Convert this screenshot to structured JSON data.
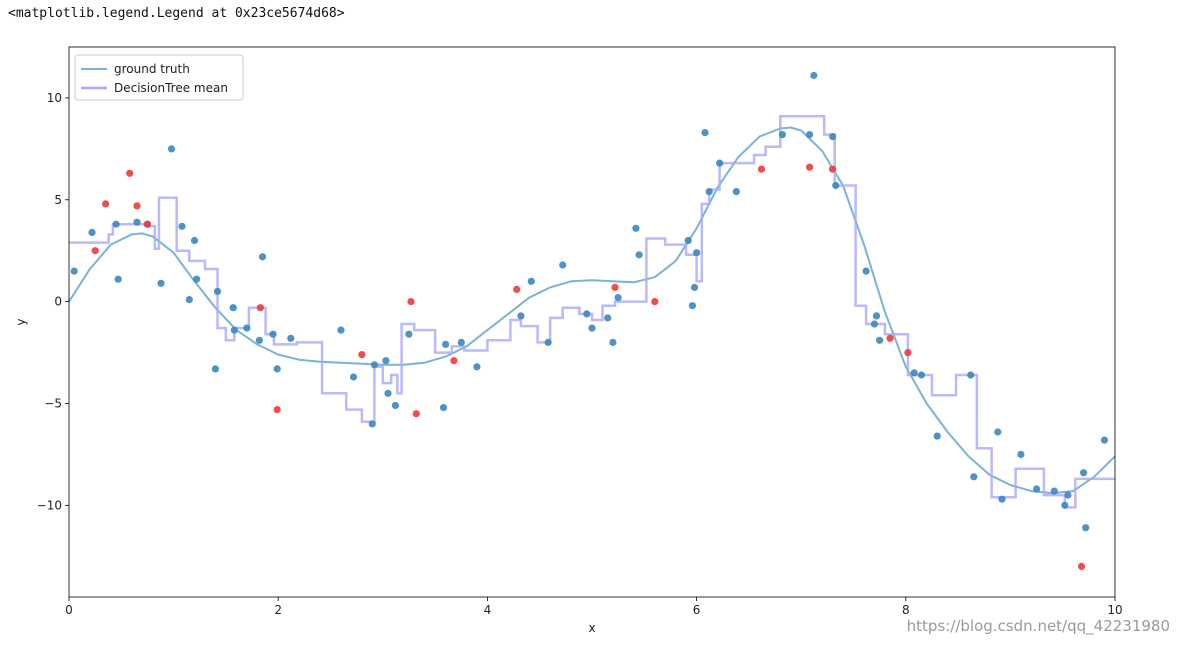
{
  "notebook": {
    "output_repr": "<matplotlib.legend.Legend at 0x23ce5674d68>",
    "watermark": "https://blog.csdn.net/qq_42231980"
  },
  "chart_data": {
    "type": "scatter",
    "title": "",
    "xlabel": "x",
    "ylabel": "y",
    "xlim": [
      0,
      10
    ],
    "ylim": [
      -14.5,
      12.5
    ],
    "xticks": [
      0,
      2,
      4,
      6,
      8,
      10
    ],
    "xtick_labels": [
      "0",
      "2",
      "4",
      "6",
      "8",
      "10"
    ],
    "yticks": [
      10,
      5,
      0,
      -5,
      -10
    ],
    "ytick_labels": [
      "10",
      "5",
      "0",
      "−5",
      "−10"
    ],
    "grid": false,
    "legend_position": "top-left",
    "colors": {
      "ground_truth": "#7bb3d4",
      "tree_mean": "#a8a8ff",
      "train_points": "#3c87bf",
      "outlier_points": "#f03a3a"
    },
    "series": [
      {
        "name": "ground truth",
        "kind": "line",
        "x": [
          0,
          0.2,
          0.4,
          0.6,
          0.7,
          0.8,
          1.0,
          1.2,
          1.4,
          1.6,
          1.8,
          2.0,
          2.2,
          2.4,
          2.6,
          2.8,
          3.0,
          3.2,
          3.4,
          3.6,
          3.8,
          4.0,
          4.2,
          4.4,
          4.6,
          4.8,
          5.0,
          5.2,
          5.4,
          5.6,
          5.8,
          6.0,
          6.2,
          6.4,
          6.6,
          6.8,
          6.9,
          7.0,
          7.2,
          7.4,
          7.6,
          7.8,
          8.0,
          8.2,
          8.4,
          8.6,
          8.8,
          9.0,
          9.2,
          9.4,
          9.6,
          9.8,
          10.0
        ],
        "y": [
          0,
          1.6,
          2.8,
          3.3,
          3.35,
          3.2,
          2.4,
          1.0,
          -0.3,
          -1.4,
          -2.1,
          -2.6,
          -2.85,
          -2.95,
          -3.0,
          -3.05,
          -3.1,
          -3.1,
          -3.0,
          -2.7,
          -2.2,
          -1.4,
          -0.6,
          0.2,
          0.7,
          1.0,
          1.05,
          1.0,
          0.95,
          1.2,
          2.0,
          3.6,
          5.6,
          7.1,
          8.1,
          8.5,
          8.55,
          8.4,
          7.4,
          5.7,
          2.8,
          -0.5,
          -3.2,
          -5.0,
          -6.4,
          -7.6,
          -8.5,
          -9.0,
          -9.3,
          -9.4,
          -9.3,
          -8.6,
          -7.6
        ]
      },
      {
        "name": "DecisionTree mean",
        "kind": "step",
        "x": [
          0,
          0.38,
          0.42,
          0.75,
          0.82,
          0.86,
          1.03,
          1.15,
          1.3,
          1.42,
          1.5,
          1.58,
          1.72,
          1.88,
          1.96,
          2.18,
          2.42,
          2.65,
          2.8,
          2.92,
          3.0,
          3.08,
          3.14,
          3.18,
          3.3,
          3.5,
          3.66,
          3.78,
          4.0,
          4.22,
          4.32,
          4.48,
          4.6,
          4.72,
          4.88,
          5.0,
          5.1,
          5.22,
          5.52,
          5.7,
          5.9,
          6.0,
          6.05,
          6.12,
          6.22,
          6.55,
          6.66,
          6.8,
          7.22,
          7.32,
          7.52,
          7.62,
          7.8,
          8.02,
          8.25,
          8.48,
          8.68,
          8.82,
          9.05,
          9.32,
          9.52,
          9.62,
          9.82,
          10.0
        ],
        "y": [
          2.9,
          3.3,
          3.8,
          3.7,
          2.6,
          5.1,
          2.5,
          2.0,
          1.6,
          -1.3,
          -1.9,
          -1.3,
          -0.3,
          -1.6,
          -2.1,
          -2.0,
          -4.5,
          -5.3,
          -5.9,
          -3.2,
          -4.0,
          -3.6,
          -4.5,
          -1.1,
          -1.4,
          -2.5,
          -2.2,
          -2.4,
          -1.9,
          -0.9,
          -1.2,
          -2.0,
          -0.8,
          -0.3,
          -0.6,
          -0.9,
          -0.2,
          0.0,
          3.1,
          2.8,
          2.3,
          1.0,
          4.8,
          5.5,
          6.8,
          7.2,
          7.6,
          9.1,
          8.2,
          5.7,
          -0.2,
          -1.1,
          -1.6,
          -3.6,
          -4.6,
          -3.6,
          -7.2,
          -9.6,
          -8.2,
          -9.5,
          -10.1,
          -8.7,
          -8.7,
          -8.7
        ]
      },
      {
        "name": "",
        "kind": "points",
        "x": [
          0.05,
          0.22,
          0.45,
          0.47,
          0.65,
          0.75,
          0.88,
          0.98,
          1.08,
          1.15,
          1.2,
          1.22,
          1.4,
          1.42,
          1.57,
          1.58,
          1.7,
          1.82,
          1.85,
          1.95,
          1.99,
          2.12,
          2.6,
          2.72,
          2.9,
          2.92,
          3.03,
          3.05,
          3.12,
          3.25,
          3.58,
          3.6,
          3.75,
          3.9,
          4.32,
          4.42,
          4.58,
          4.72,
          4.95,
          5.0,
          5.15,
          5.2,
          5.25,
          5.42,
          5.45,
          5.92,
          5.96,
          5.98,
          6.0,
          6.08,
          6.12,
          6.22,
          6.38,
          6.82,
          7.08,
          7.12,
          7.3,
          7.33,
          7.62,
          7.7,
          7.72,
          7.75,
          8.08,
          8.15,
          8.3,
          8.62,
          8.65,
          8.88,
          8.92,
          9.1,
          9.25,
          9.42,
          9.52,
          9.55,
          9.7,
          9.72,
          9.9
        ],
        "y": [
          1.5,
          3.4,
          3.8,
          1.1,
          3.9,
          3.8,
          0.9,
          7.5,
          3.7,
          0.1,
          3.0,
          1.1,
          -3.3,
          0.5,
          -0.3,
          -1.4,
          -1.3,
          -1.9,
          2.2,
          -1.6,
          -3.3,
          -1.8,
          -1.4,
          -3.7,
          -6.0,
          -3.1,
          -2.9,
          -4.5,
          -5.1,
          -1.6,
          -5.2,
          -2.1,
          -2.0,
          -3.2,
          -0.7,
          1.0,
          -2.0,
          1.8,
          -0.6,
          -1.3,
          -0.8,
          -2.0,
          0.2,
          3.6,
          2.3,
          3.0,
          -0.2,
          0.7,
          2.4,
          8.3,
          5.4,
          6.8,
          5.4,
          8.2,
          8.2,
          11.1,
          8.1,
          5.7,
          1.5,
          -1.1,
          -0.7,
          -1.9,
          -3.5,
          -3.6,
          -6.6,
          -3.6,
          -8.6,
          -6.4,
          -9.7,
          -7.5,
          -9.2,
          -9.3,
          -10.0,
          -9.5,
          -8.4,
          -11.1,
          -6.8
        ]
      },
      {
        "name": "",
        "kind": "points",
        "x": [
          0.25,
          0.35,
          0.58,
          0.65,
          0.75,
          1.83,
          1.99,
          2.8,
          3.27,
          3.32,
          3.68,
          4.28,
          5.22,
          5.6,
          6.62,
          7.08,
          7.3,
          7.85,
          8.02,
          9.68
        ],
        "y": [
          2.5,
          4.8,
          6.3,
          4.7,
          3.8,
          -0.3,
          -5.3,
          -2.6,
          0.0,
          -5.5,
          -2.9,
          0.6,
          0.7,
          0.0,
          6.5,
          6.6,
          6.5,
          -1.8,
          -2.5,
          -13.0
        ]
      }
    ]
  }
}
